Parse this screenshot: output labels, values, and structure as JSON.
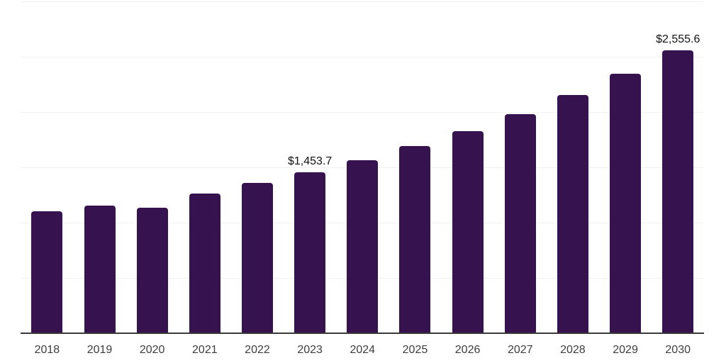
{
  "chart_data": {
    "type": "bar",
    "categories": [
      "2018",
      "2019",
      "2020",
      "2021",
      "2022",
      "2023",
      "2024",
      "2025",
      "2026",
      "2027",
      "2028",
      "2029",
      "2030"
    ],
    "values": [
      1101,
      1154,
      1133,
      1265,
      1357,
      1453.7,
      1566,
      1692,
      1829,
      1981,
      2154,
      2344,
      2555.6
    ],
    "data_labels": [
      {
        "category": "2023",
        "text": "$1,453.7"
      },
      {
        "category": "2030",
        "text": "$2,555.6"
      }
    ],
    "xlabel": "",
    "ylabel": "",
    "ylim": [
      0,
      3000
    ],
    "gridline_step": 500,
    "grid": "horizontal-only",
    "y_tick_labels_visible": false,
    "legend": "none"
  },
  "colors": {
    "bar": "#36124E",
    "background": "#ffffff",
    "gridline": "#f1f1f1",
    "axis_line": "#3b3b3b",
    "x_label_text": "#3d3d3d",
    "value_label_text": "#111111"
  }
}
